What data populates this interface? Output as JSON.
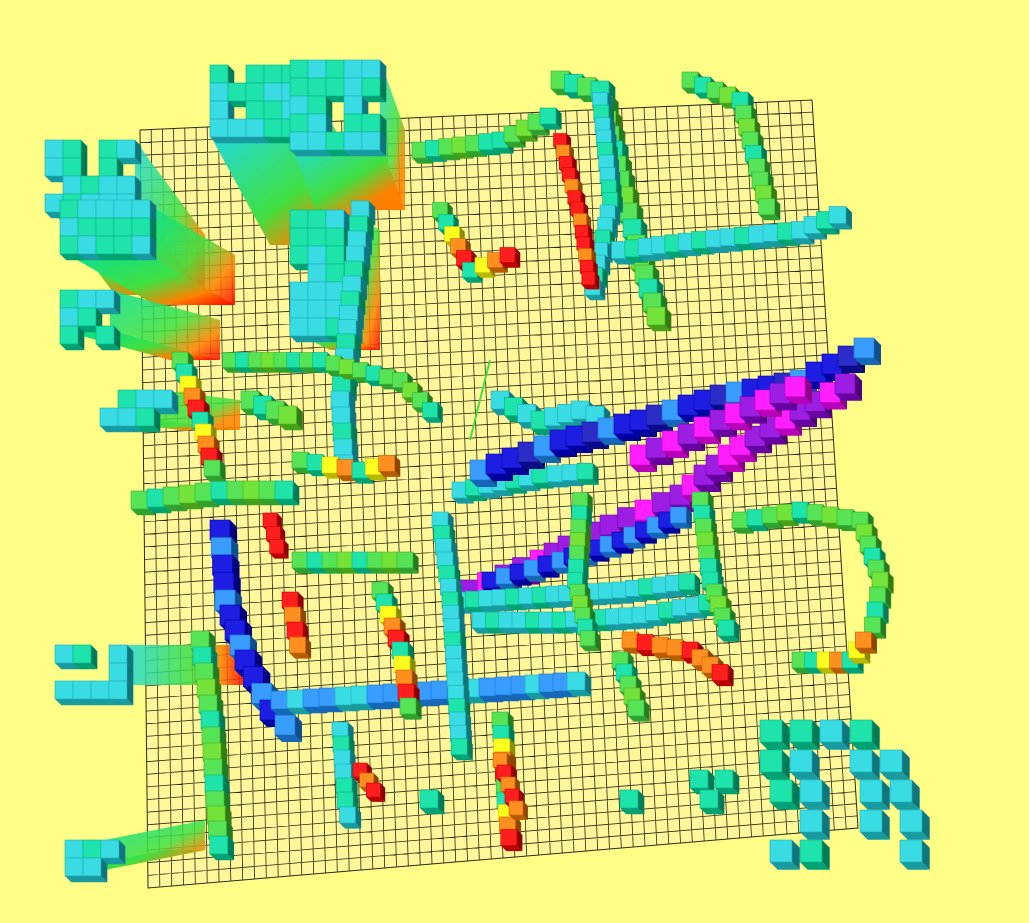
{
  "scene": {
    "background_color": "#ffff88",
    "grid_color": "#2a2a10",
    "grid_fill": "#fff79a",
    "colormap": [
      "#ff0000",
      "#ff8000",
      "#ffff00",
      "#40e040",
      "#00e0a0",
      "#20d8e0",
      "#1e90ff",
      "#0000e0",
      "#9000e0",
      "#ff00ff"
    ]
  }
}
